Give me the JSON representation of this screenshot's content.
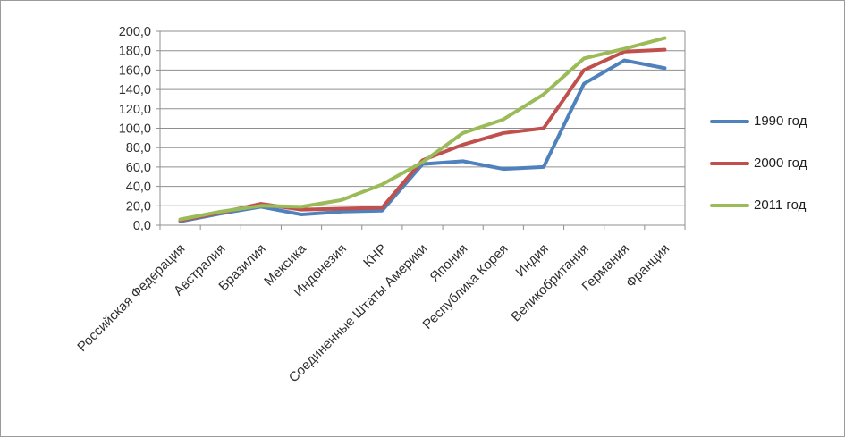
{
  "chart_data": {
    "type": "line",
    "title": "",
    "xlabel": "",
    "ylabel": "",
    "categories": [
      "Российская Федерация",
      "Австралия",
      "Бразилия",
      "Мексика",
      "Индонезия",
      "КНР",
      "Соединенные  Штаты Америки",
      "Япония",
      "Республика Корея",
      "Индия",
      "Великобритания",
      "Германия",
      "Франция"
    ],
    "series": [
      {
        "name": "1990 год",
        "color": "#4F81BD",
        "values": [
          4,
          12,
          19,
          11,
          14,
          15,
          63,
          66,
          58,
          60,
          146,
          170,
          162
        ]
      },
      {
        "name": "2000 год",
        "color": "#C0504D",
        "values": [
          5,
          13,
          22,
          16,
          17,
          18,
          67,
          83,
          95,
          100,
          160,
          179,
          181
        ]
      },
      {
        "name": "2011 год",
        "color": "#9BBB59",
        "values": [
          6,
          14,
          20,
          19,
          26,
          42,
          65,
          95,
          109,
          135,
          172,
          182,
          193
        ]
      }
    ],
    "ylim": [
      0,
      200
    ],
    "y_tick_step": 20,
    "y_tick_values": [
      0,
      20,
      40,
      60,
      80,
      100,
      120,
      140,
      160,
      180,
      200
    ],
    "y_tick_labels": [
      "0,0",
      "20,0",
      "40,0",
      "60,0",
      "80,0",
      "100,0",
      "120,0",
      "140,0",
      "160,0",
      "180,0",
      "200,0"
    ],
    "grid": "horizontal",
    "legend_position": "right",
    "colors": {
      "grid": "#8f8f8f",
      "axis": "#8f8f8f",
      "tick_text": "#303030",
      "category_text": "#303030"
    }
  }
}
